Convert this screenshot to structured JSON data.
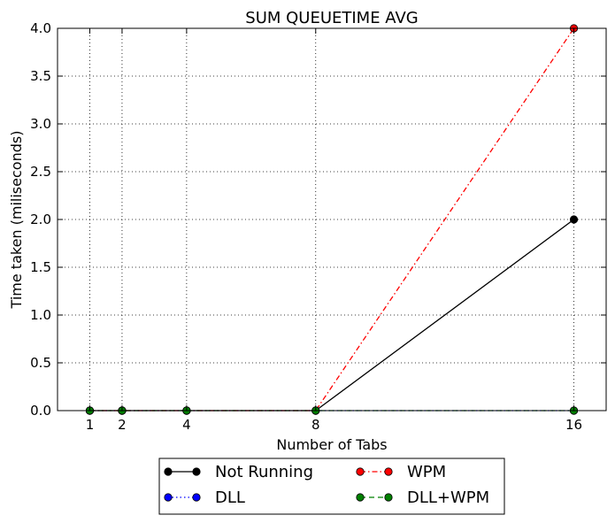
{
  "chart_data": {
    "type": "line",
    "title": "SUM QUEUETIME AVG",
    "xlabel": "Number of Tabs",
    "ylabel": "Time taken (miliseconds)",
    "x": [
      1,
      2,
      4,
      8,
      16
    ],
    "xticks": [
      "1",
      "2",
      "4",
      "8",
      "16"
    ],
    "xlim": [
      0,
      17
    ],
    "ylim": [
      0,
      4
    ],
    "yticks": [
      "0.0",
      "0.5",
      "1.0",
      "1.5",
      "2.0",
      "2.5",
      "3.0",
      "3.5",
      "4.0"
    ],
    "grid": true,
    "legend_position": "bottom-center-outside",
    "series": [
      {
        "name": "Not Running",
        "values": [
          0,
          0,
          0,
          0,
          2
        ],
        "color": "#000000",
        "linestyle": "solid"
      },
      {
        "name": "DLL",
        "values": [
          0,
          0,
          0,
          0,
          0
        ],
        "color": "#0000ff",
        "linestyle": "dotted"
      },
      {
        "name": "WPM",
        "values": [
          0,
          0,
          0,
          0,
          4
        ],
        "color": "#ff0000",
        "linestyle": "dashdot"
      },
      {
        "name": "DLL+WPM",
        "values": [
          0,
          0,
          0,
          0,
          0
        ],
        "color": "#008000",
        "linestyle": "dashed"
      }
    ]
  }
}
